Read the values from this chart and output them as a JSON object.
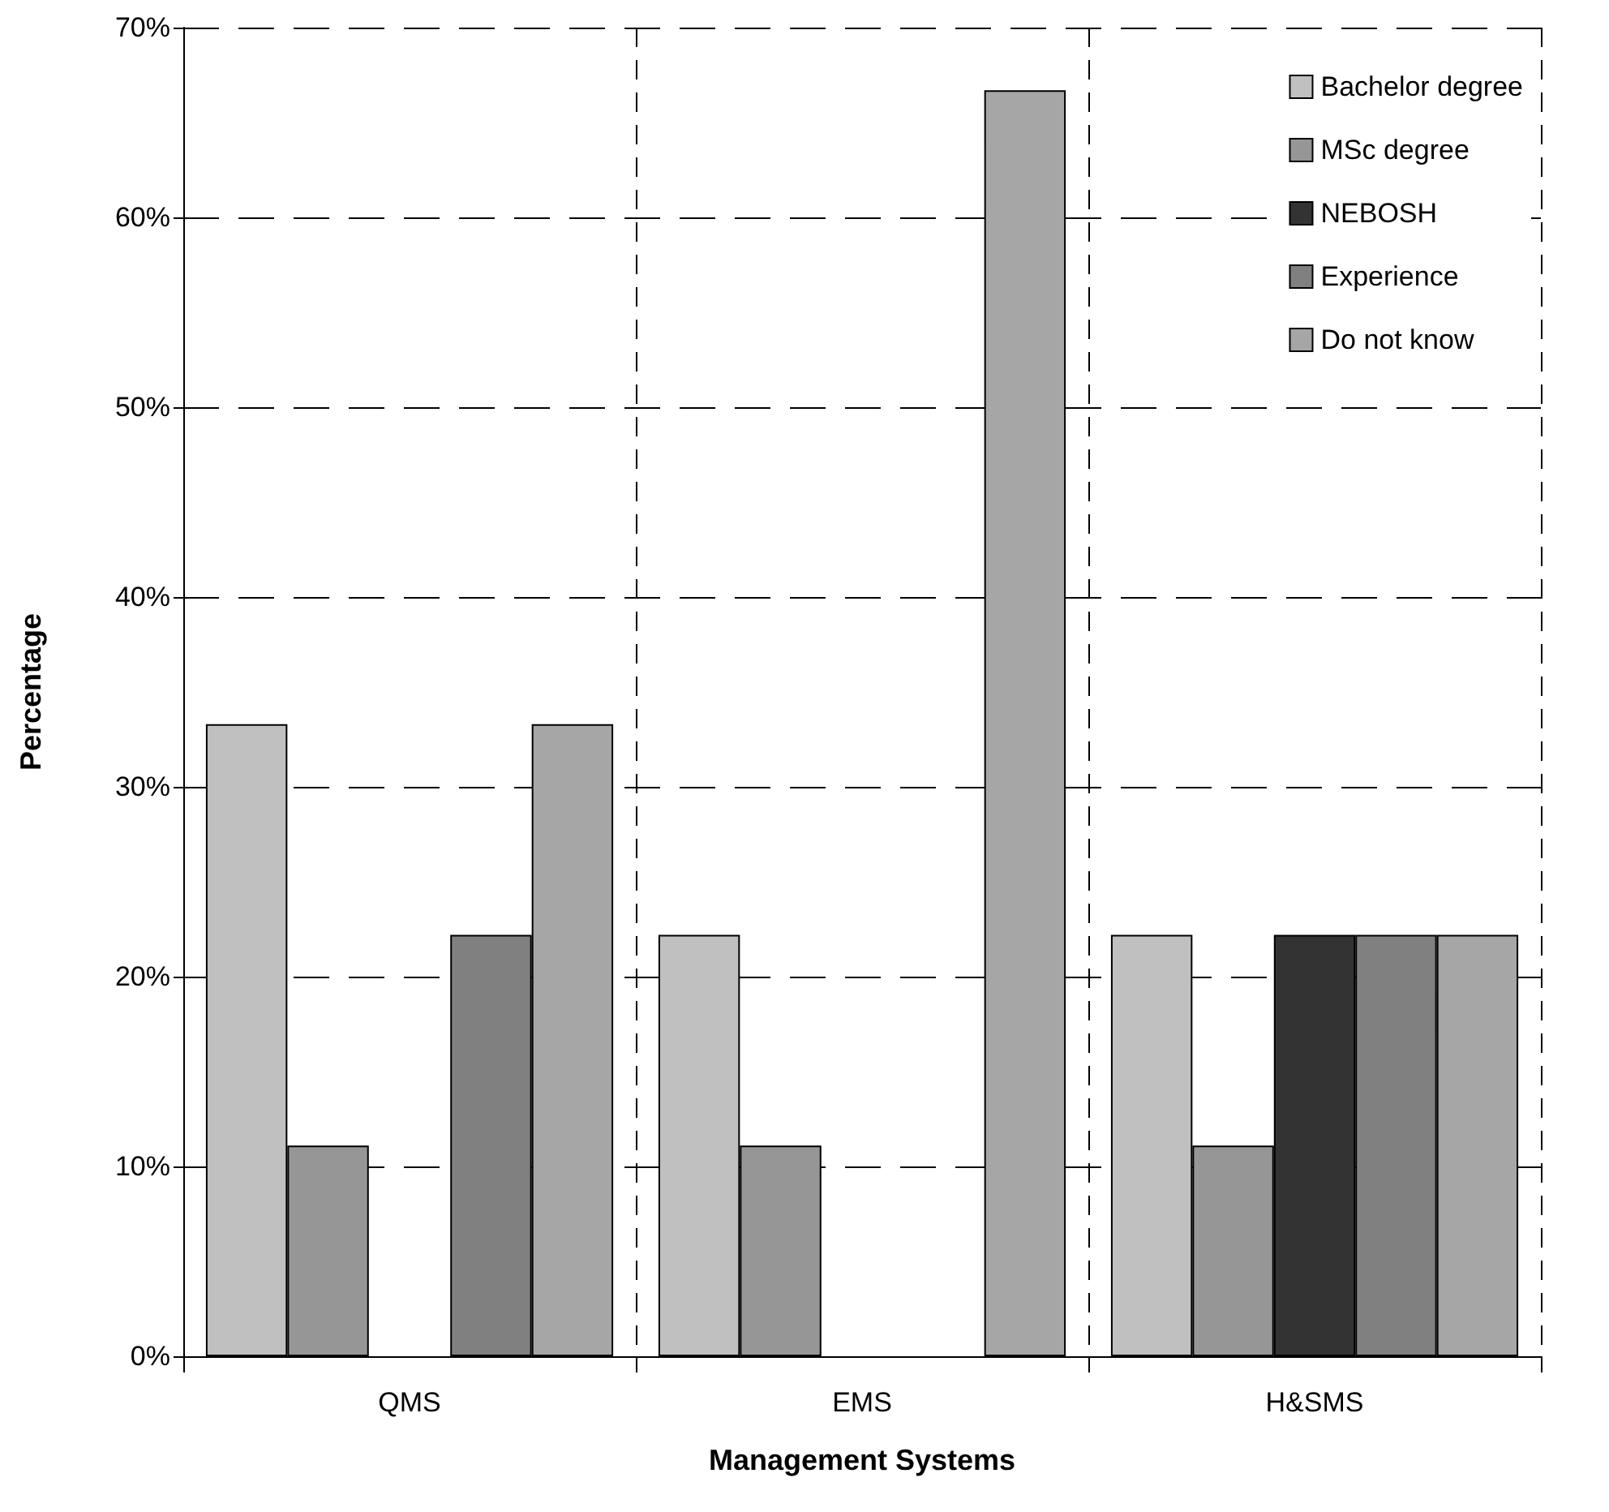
{
  "chart_data": {
    "type": "bar",
    "xlabel": "Management Systems",
    "ylabel": "Percentage",
    "categories": [
      "QMS",
      "EMS",
      "H&SMS"
    ],
    "series": [
      {
        "name": "Bachelor degree",
        "color": "#c0c0c0",
        "values": [
          33.3,
          22.2,
          22.2
        ]
      },
      {
        "name": "MSc degree",
        "color": "#969696",
        "values": [
          11.1,
          11.1,
          11.1
        ]
      },
      {
        "name": "NEBOSH",
        "color": "#333333",
        "values": [
          null,
          null,
          22.2
        ]
      },
      {
        "name": "Experience",
        "color": "#808080",
        "values": [
          22.2,
          null,
          22.2
        ]
      },
      {
        "name": "Do not know",
        "color": "#a6a6a6",
        "values": [
          33.3,
          66.7,
          22.2
        ]
      }
    ],
    "ylim": [
      0,
      70
    ],
    "yticks": [
      {
        "value": 0,
        "label": "0%"
      },
      {
        "value": 10,
        "label": "10%"
      },
      {
        "value": 20,
        "label": "20%"
      },
      {
        "value": 30,
        "label": "30%"
      },
      {
        "value": 40,
        "label": "40%"
      },
      {
        "value": 50,
        "label": "50%"
      },
      {
        "value": 60,
        "label": "60%"
      },
      {
        "value": 70,
        "label": "70%"
      }
    ],
    "grid": true,
    "legend": "top right"
  }
}
